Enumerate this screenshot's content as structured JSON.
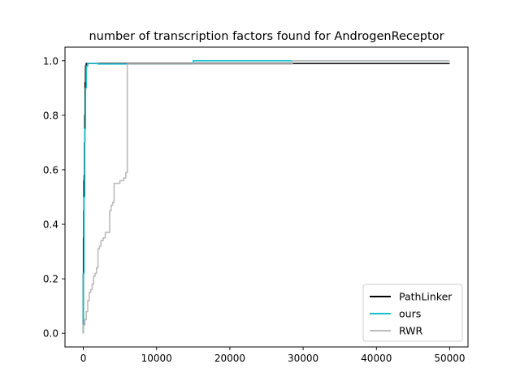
{
  "chart_data": {
    "type": "line",
    "title": "number of transcription factors found for AndrogenReceptor",
    "xlabel": "",
    "ylabel": "",
    "xlim": [
      -2500,
      52500
    ],
    "ylim": [
      -0.05,
      1.05
    ],
    "xticks": [
      0,
      10000,
      20000,
      30000,
      40000,
      50000
    ],
    "yticks": [
      0.0,
      0.2,
      0.4,
      0.6,
      0.8,
      1.0
    ],
    "xtick_labels": [
      "0",
      "10000",
      "20000",
      "30000",
      "40000",
      "50000"
    ],
    "ytick_labels": [
      "0.0",
      "0.2",
      "0.4",
      "0.6",
      "0.8",
      "1.0"
    ],
    "legend_position": "lower-right",
    "grid": false,
    "series": [
      {
        "name": "PathLinker",
        "color": "#000000",
        "x": [
          0,
          0,
          20,
          20,
          50,
          50,
          80,
          80,
          120,
          120,
          160,
          160,
          200,
          200,
          240,
          240,
          300,
          300,
          400,
          400,
          50000
        ],
        "y": [
          0.0,
          0.22,
          0.22,
          0.35,
          0.35,
          0.45,
          0.45,
          0.56,
          0.56,
          0.58,
          0.58,
          0.7,
          0.7,
          0.8,
          0.8,
          0.92,
          0.92,
          0.98,
          0.98,
          0.99,
          0.99
        ]
      },
      {
        "name": "ours",
        "color": "#17becf",
        "x": [
          0,
          0,
          100,
          100,
          200,
          200,
          300,
          300,
          400,
          400,
          600,
          600,
          2000,
          2000,
          15000,
          15000,
          50000
        ],
        "y": [
          0.0,
          0.22,
          0.22,
          0.5,
          0.5,
          0.75,
          0.75,
          0.9,
          0.9,
          0.98,
          0.98,
          0.99,
          0.99,
          0.988,
          0.988,
          1.0,
          1.0
        ]
      },
      {
        "name": "RWR",
        "color": "#bbbbbb",
        "x": [
          0,
          0,
          200,
          200,
          400,
          400,
          600,
          600,
          800,
          800,
          1000,
          1000,
          1200,
          1200,
          1400,
          1400,
          1600,
          1600,
          1800,
          1800,
          2000,
          2000,
          2200,
          2200,
          2400,
          2400,
          2700,
          2700,
          3000,
          3000,
          3300,
          3300,
          3600,
          3600,
          3800,
          3800,
          4000,
          4000,
          4200,
          4200,
          5000,
          5000,
          5500,
          5500,
          5800,
          5800,
          6000,
          6000,
          28500,
          28500,
          50000
        ],
        "y": [
          0.0,
          0.03,
          0.03,
          0.05,
          0.05,
          0.08,
          0.08,
          0.12,
          0.12,
          0.15,
          0.15,
          0.16,
          0.16,
          0.18,
          0.18,
          0.21,
          0.21,
          0.22,
          0.22,
          0.24,
          0.24,
          0.31,
          0.31,
          0.32,
          0.32,
          0.34,
          0.34,
          0.35,
          0.35,
          0.37,
          0.37,
          0.37,
          0.37,
          0.45,
          0.45,
          0.47,
          0.47,
          0.48,
          0.48,
          0.55,
          0.55,
          0.56,
          0.56,
          0.57,
          0.57,
          0.59,
          0.59,
          0.988,
          0.988,
          1.0,
          1.0
        ]
      }
    ]
  }
}
